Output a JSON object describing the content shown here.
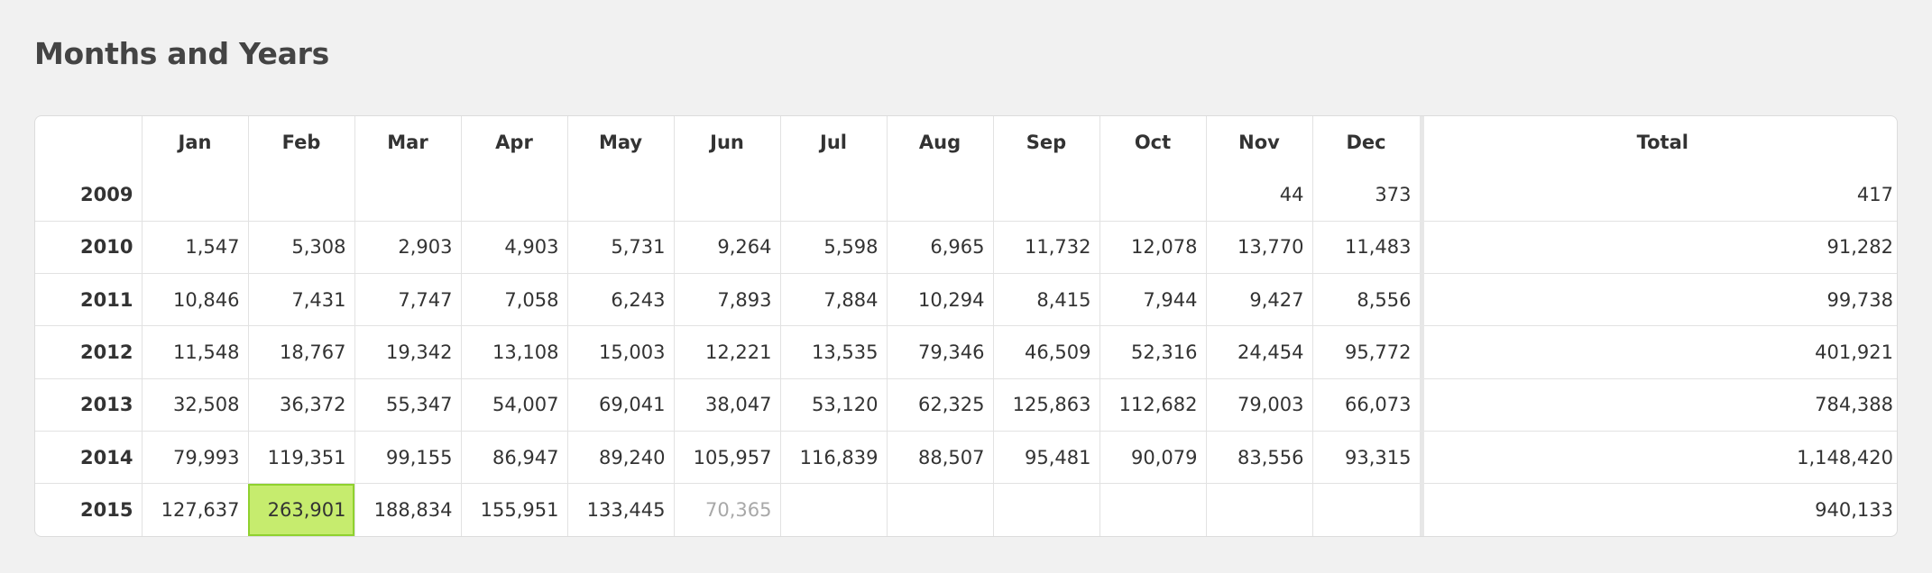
{
  "page_title": "Months and Years",
  "columns": [
    "",
    "Jan",
    "Feb",
    "Mar",
    "Apr",
    "May",
    "Jun",
    "Jul",
    "Aug",
    "Sep",
    "Oct",
    "Nov",
    "Dec",
    "Total"
  ],
  "rows": [
    {
      "year": "2009",
      "cells": [
        "",
        "",
        "",
        "",
        "",
        "",
        "",
        "",
        "",
        "",
        "44",
        "373"
      ],
      "total": "417"
    },
    {
      "year": "2010",
      "cells": [
        "1,547",
        "5,308",
        "2,903",
        "4,903",
        "5,731",
        "9,264",
        "5,598",
        "6,965",
        "11,732",
        "12,078",
        "13,770",
        "11,483"
      ],
      "total": "91,282"
    },
    {
      "year": "2011",
      "cells": [
        "10,846",
        "7,431",
        "7,747",
        "7,058",
        "6,243",
        "7,893",
        "7,884",
        "10,294",
        "8,415",
        "7,944",
        "9,427",
        "8,556"
      ],
      "total": "99,738"
    },
    {
      "year": "2012",
      "cells": [
        "11,548",
        "18,767",
        "19,342",
        "13,108",
        "15,003",
        "12,221",
        "13,535",
        "79,346",
        "46,509",
        "52,316",
        "24,454",
        "95,772"
      ],
      "total": "401,921"
    },
    {
      "year": "2013",
      "cells": [
        "32,508",
        "36,372",
        "55,347",
        "54,007",
        "69,041",
        "38,047",
        "53,120",
        "62,325",
        "125,863",
        "112,682",
        "79,003",
        "66,073"
      ],
      "total": "784,388"
    },
    {
      "year": "2014",
      "cells": [
        "79,993",
        "119,351",
        "99,155",
        "86,947",
        "89,240",
        "105,957",
        "116,839",
        "88,507",
        "95,481",
        "90,079",
        "83,556",
        "93,315"
      ],
      "total": "1,148,420"
    },
    {
      "year": "2015",
      "cells": [
        "127,637",
        "263,901",
        "188,834",
        "155,951",
        "133,445",
        "70,365",
        "",
        "",
        "",
        "",
        "",
        ""
      ],
      "total": "940,133"
    }
  ],
  "highlight_cell": {
    "row": 6,
    "col": 1
  },
  "partial_cell": {
    "row": 6,
    "col": 5
  },
  "colors": {
    "background": "#f1f1f1",
    "highlight_fill": "#c6ec6e",
    "highlight_border": "#8fd12f",
    "partial_text": "#a8a8a8"
  }
}
